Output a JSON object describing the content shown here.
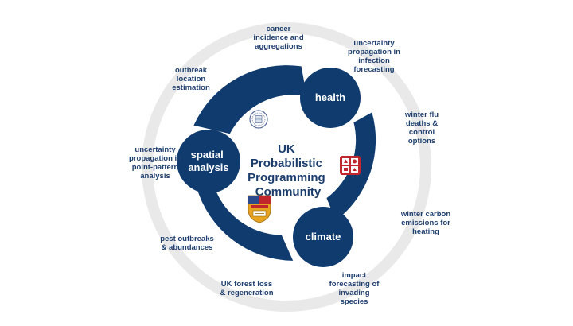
{
  "center_title": [
    "UK",
    "Probabilistic",
    "Programming",
    "Community"
  ],
  "nodes": {
    "health": "health",
    "spatial": [
      "spatial",
      "analysis"
    ],
    "climate": "climate"
  },
  "applications": {
    "cancer": "cancer\nincidence and\naggregations",
    "infection": "uncertainty\npropagation in\ninfection\nforecasting",
    "flu": "winter flu\ndeaths &\ncontrol\noptions",
    "carbon": "winter carbon\nemissions for\nheating",
    "invasive": "impact\nforecasting of\ninvading\nspecies",
    "forest": "UK forest loss\n& regeneration",
    "pest": "pest outbreaks\n& abundances",
    "point_pattern": "uncertainty\npropagation in\npoint-pattern\nanalysis",
    "outbreak": "outbreak\nlocation\nestimation"
  },
  "colors": {
    "navy": "#0f3b6f",
    "ring": "#e9e9e9",
    "crest_red": "#c0262c",
    "crest_gold": "#e6a421",
    "crest_blue": "#2b4a8c"
  },
  "logos": [
    "university-seal-logo",
    "research-crest-logo",
    "college-shield-logo"
  ]
}
